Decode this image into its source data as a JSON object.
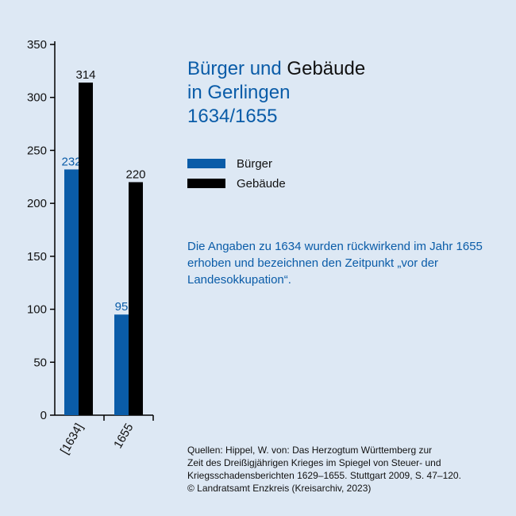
{
  "title": {
    "part1": "Bürger und",
    "part2": "Gebäude",
    "line2": "in Gerlingen",
    "line3": "1634/1655"
  },
  "note": "Die Angaben zu 1634 wurden rückwirkend im Jahr 1655 erhoben und bezeichnen den Zeitpunkt „vor der Landesokkupation“.",
  "sources": [
    "Quellen: Hippel, W. von: Das Herzogtum Württemberg zur",
    "Zeit des Dreißigjährigen Krieges im Spiegel von Steuer- und",
    "Kriegsschadensberichten 1629–1655. Stuttgart 2009, S. 47–120.",
    "© Landratsamt Enzkreis (Kreisarchiv, 2023)"
  ],
  "colors": {
    "buerger": "#0a5ca8",
    "gebaeude": "#000000",
    "background": "#dde8f4"
  },
  "chart_data": {
    "type": "bar",
    "categories": [
      "[1634]",
      "1655"
    ],
    "series": [
      {
        "name": "Bürger",
        "values": [
          232,
          95
        ],
        "color": "#0a5ca8"
      },
      {
        "name": "Gebäude",
        "values": [
          314,
          220
        ],
        "color": "#000000"
      }
    ],
    "yticks": [
      0,
      50,
      100,
      150,
      200,
      250,
      300,
      350
    ],
    "ylim": [
      0,
      350
    ],
    "xlabel": "",
    "ylabel": "",
    "grid": false,
    "legend": "right"
  }
}
